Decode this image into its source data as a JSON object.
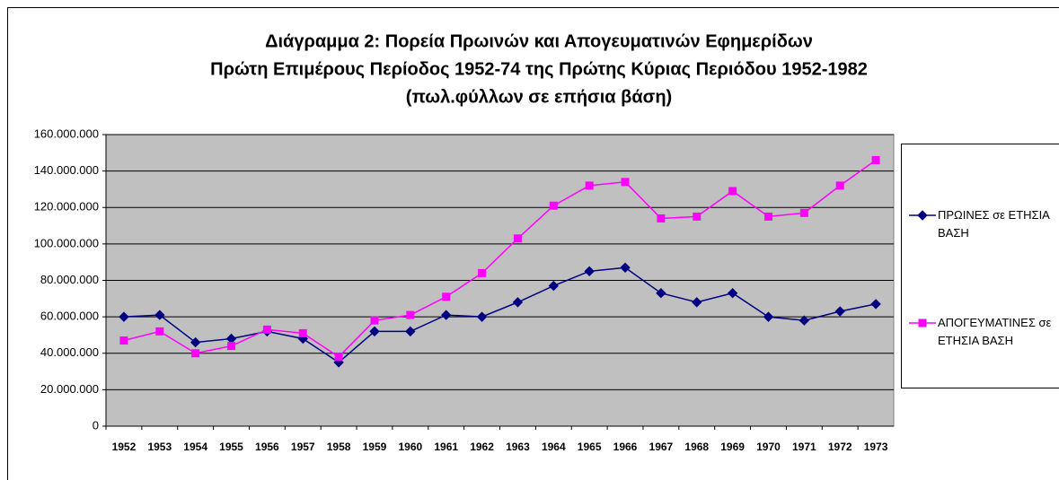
{
  "chart_data": {
    "type": "line",
    "title": [
      "Διάγραμμα 2: Πορεία Πρωινών και Απογευματινών Εφημερίδων",
      "Πρώτη Επιμέρους Περίοδος 1952-74 της Πρώτης Κύριας Περιόδου 1952-1982",
      "(πωλ.φύλλων σε επήσια βάση)"
    ],
    "categories": [
      "1952",
      "1953",
      "1954",
      "1955",
      "1956",
      "1957",
      "1958",
      "1959",
      "1960",
      "1961",
      "1962",
      "1963",
      "1964",
      "1965",
      "1966",
      "1967",
      "1968",
      "1969",
      "1970",
      "1971",
      "1972",
      "1973"
    ],
    "series": [
      {
        "name": "ΠΡΩΙΝΕΣ σε ΕΤΗΣΙΑ ΒΑΣΗ",
        "color": "#000080",
        "marker": "diamond",
        "values": [
          60000000,
          61000000,
          46000000,
          48000000,
          52000000,
          48000000,
          35000000,
          52000000,
          52000000,
          61000000,
          60000000,
          68000000,
          77000000,
          85000000,
          87000000,
          73000000,
          68000000,
          73000000,
          60000000,
          58000000,
          63000000,
          67000000
        ]
      },
      {
        "name": "ΑΠΟΓΕΥΜΑΤΙΝΕΣ σε ΕΤΗΣΙΑ ΒΑΣΗ",
        "color": "#ff00ff",
        "marker": "square",
        "values": [
          47000000,
          52000000,
          40000000,
          44000000,
          53000000,
          51000000,
          38000000,
          58000000,
          61000000,
          71000000,
          84000000,
          103000000,
          121000000,
          132000000,
          134000000,
          114000000,
          115000000,
          129000000,
          115000000,
          117000000,
          132000000,
          146000000
        ]
      }
    ],
    "ylim": [
      0,
      160000000
    ],
    "yticks": [
      0,
      {
        "value": 20000000,
        "label": "20.000.000"
      },
      {
        "value": 40000000,
        "label": "40.000.000"
      },
      {
        "value": 60000000,
        "label": "60.000.000"
      },
      {
        "value": 80000000,
        "label": "80.000.000"
      },
      {
        "value": 100000000,
        "label": "100.000.000"
      },
      {
        "value": 120000000,
        "label": "120.000.000"
      },
      {
        "value": 140000000,
        "label": "140.000.000"
      },
      {
        "value": 160000000,
        "label": "160.000.000"
      }
    ],
    "grid": true,
    "plot_background": "#c0c0c0",
    "legend": "right"
  }
}
